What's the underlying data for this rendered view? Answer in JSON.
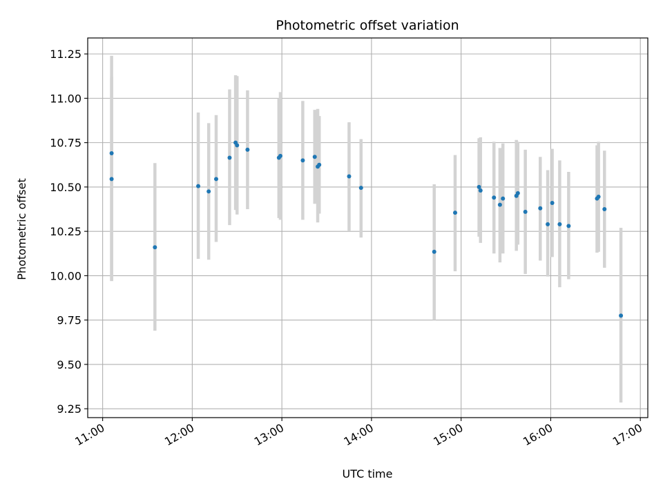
{
  "chart_data": {
    "type": "scatter",
    "title": "Photometric offset variation",
    "xlabel": "UTC time",
    "ylabel": "Photometric offset",
    "x_ticks": [
      "11:00",
      "12:00",
      "13:00",
      "14:00",
      "15:00",
      "16:00",
      "17:00"
    ],
    "y_ticks": [
      "9.25",
      "9.50",
      "9.75",
      "10.00",
      "10.25",
      "10.50",
      "10.75",
      "11.00",
      "11.25"
    ],
    "xlim": [
      "10:50",
      "17:05"
    ],
    "ylim": [
      9.2,
      11.34
    ],
    "grid": true,
    "colors": {
      "point": "#1f77b4",
      "errorbar": "#d3d3d3",
      "grid": "#b0b0b0"
    },
    "points": [
      {
        "x": "11:06",
        "y": 10.69,
        "ymin": 9.97,
        "ymax": 11.24
      },
      {
        "x": "11:06",
        "y": 10.545,
        "ymin": 9.97,
        "ymax": 11.12
      },
      {
        "x": "11:35",
        "y": 10.16,
        "ymin": 9.69,
        "ymax": 10.635
      },
      {
        "x": "12:04",
        "y": 10.505,
        "ymin": 10.095,
        "ymax": 10.92
      },
      {
        "x": "12:11",
        "y": 10.475,
        "ymin": 10.09,
        "ymax": 10.86
      },
      {
        "x": "12:16",
        "y": 10.545,
        "ymin": 10.19,
        "ymax": 10.905
      },
      {
        "x": "12:25",
        "y": 10.665,
        "ymin": 10.285,
        "ymax": 11.05
      },
      {
        "x": "12:29",
        "y": 10.75,
        "ymin": 10.37,
        "ymax": 11.13
      },
      {
        "x": "12:30",
        "y": 10.735,
        "ymin": 10.345,
        "ymax": 11.125
      },
      {
        "x": "12:37",
        "y": 10.71,
        "ymin": 10.375,
        "ymax": 11.045
      },
      {
        "x": "12:58",
        "y": 10.665,
        "ymin": 10.325,
        "ymax": 11.0
      },
      {
        "x": "12:59",
        "y": 10.675,
        "ymin": 10.315,
        "ymax": 11.035
      },
      {
        "x": "13:14",
        "y": 10.65,
        "ymin": 10.315,
        "ymax": 10.985
      },
      {
        "x": "13:22",
        "y": 10.67,
        "ymin": 10.405,
        "ymax": 10.935
      },
      {
        "x": "13:24",
        "y": 10.615,
        "ymin": 10.3,
        "ymax": 10.94
      },
      {
        "x": "13:25",
        "y": 10.625,
        "ymin": 10.35,
        "ymax": 10.9
      },
      {
        "x": "13:45",
        "y": 10.56,
        "ymin": 10.25,
        "ymax": 10.865
      },
      {
        "x": "13:53",
        "y": 10.495,
        "ymin": 10.215,
        "ymax": 10.77
      },
      {
        "x": "14:42",
        "y": 10.135,
        "ymin": 9.75,
        "ymax": 10.515
      },
      {
        "x": "14:56",
        "y": 10.355,
        "ymin": 10.025,
        "ymax": 10.68
      },
      {
        "x": "15:12",
        "y": 10.5,
        "ymin": 10.22,
        "ymax": 10.775
      },
      {
        "x": "15:13",
        "y": 10.48,
        "ymin": 10.185,
        "ymax": 10.78
      },
      {
        "x": "15:22",
        "y": 10.44,
        "ymin": 10.125,
        "ymax": 10.755
      },
      {
        "x": "15:26",
        "y": 10.4,
        "ymin": 10.075,
        "ymax": 10.72
      },
      {
        "x": "15:28",
        "y": 10.435,
        "ymin": 10.125,
        "ymax": 10.745
      },
      {
        "x": "15:37",
        "y": 10.45,
        "ymin": 10.14,
        "ymax": 10.765
      },
      {
        "x": "15:38",
        "y": 10.465,
        "ymin": 10.175,
        "ymax": 10.755
      },
      {
        "x": "15:43",
        "y": 10.36,
        "ymin": 10.01,
        "ymax": 10.71
      },
      {
        "x": "15:53",
        "y": 10.38,
        "ymin": 10.085,
        "ymax": 10.67
      },
      {
        "x": "15:58",
        "y": 10.29,
        "ymin": 9.995,
        "ymax": 10.595
      },
      {
        "x": "16:01",
        "y": 10.41,
        "ymin": 10.105,
        "ymax": 10.715
      },
      {
        "x": "16:06",
        "y": 10.29,
        "ymin": 9.935,
        "ymax": 10.65
      },
      {
        "x": "16:12",
        "y": 10.28,
        "ymin": 9.98,
        "ymax": 10.585
      },
      {
        "x": "16:31",
        "y": 10.435,
        "ymin": 10.13,
        "ymax": 10.735
      },
      {
        "x": "16:32",
        "y": 10.445,
        "ymin": 10.135,
        "ymax": 10.755
      },
      {
        "x": "16:36",
        "y": 10.375,
        "ymin": 10.045,
        "ymax": 10.705
      },
      {
        "x": "16:47",
        "y": 9.775,
        "ymin": 9.285,
        "ymax": 10.27
      }
    ]
  }
}
